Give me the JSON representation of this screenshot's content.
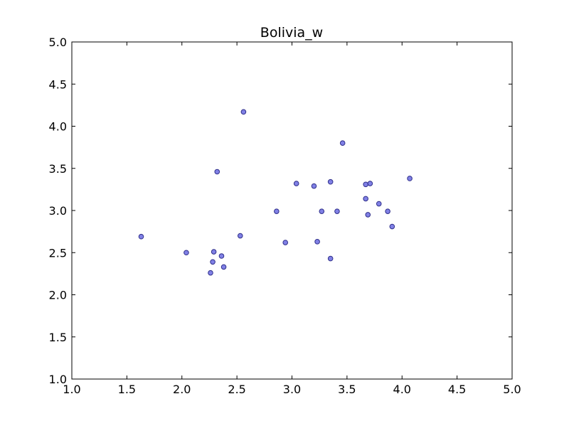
{
  "chart_data": {
    "type": "scatter",
    "title": "Bolivia_w",
    "xlabel": "",
    "ylabel": "",
    "xlim": [
      1.0,
      5.0
    ],
    "ylim": [
      1.0,
      5.0
    ],
    "xticks": [
      "1.0",
      "1.5",
      "2.0",
      "2.5",
      "3.0",
      "3.5",
      "4.0",
      "4.5",
      "5.0"
    ],
    "yticks": [
      "1.0",
      "1.5",
      "2.0",
      "2.5",
      "3.0",
      "3.5",
      "4.0",
      "4.5",
      "5.0"
    ],
    "grid": false,
    "marker_color": "#6a6ae0",
    "marker_edge_color": "#2f2f8a",
    "points": [
      {
        "x": 1.63,
        "y": 2.69
      },
      {
        "x": 2.04,
        "y": 2.5
      },
      {
        "x": 2.26,
        "y": 2.26
      },
      {
        "x": 2.28,
        "y": 2.39
      },
      {
        "x": 2.29,
        "y": 2.51
      },
      {
        "x": 2.32,
        "y": 3.46
      },
      {
        "x": 2.36,
        "y": 2.46
      },
      {
        "x": 2.38,
        "y": 2.33
      },
      {
        "x": 2.53,
        "y": 2.7
      },
      {
        "x": 2.56,
        "y": 4.17
      },
      {
        "x": 2.86,
        "y": 2.99
      },
      {
        "x": 2.94,
        "y": 2.62
      },
      {
        "x": 3.04,
        "y": 3.32
      },
      {
        "x": 3.2,
        "y": 3.29
      },
      {
        "x": 3.23,
        "y": 2.63
      },
      {
        "x": 3.27,
        "y": 2.99
      },
      {
        "x": 3.35,
        "y": 3.34
      },
      {
        "x": 3.35,
        "y": 2.43
      },
      {
        "x": 3.41,
        "y": 2.99
      },
      {
        "x": 3.46,
        "y": 3.8
      },
      {
        "x": 3.67,
        "y": 3.31
      },
      {
        "x": 3.67,
        "y": 3.14
      },
      {
        "x": 3.69,
        "y": 2.95
      },
      {
        "x": 3.71,
        "y": 3.32
      },
      {
        "x": 3.79,
        "y": 3.08
      },
      {
        "x": 3.87,
        "y": 2.99
      },
      {
        "x": 3.91,
        "y": 2.81
      },
      {
        "x": 4.07,
        "y": 3.38
      }
    ]
  }
}
